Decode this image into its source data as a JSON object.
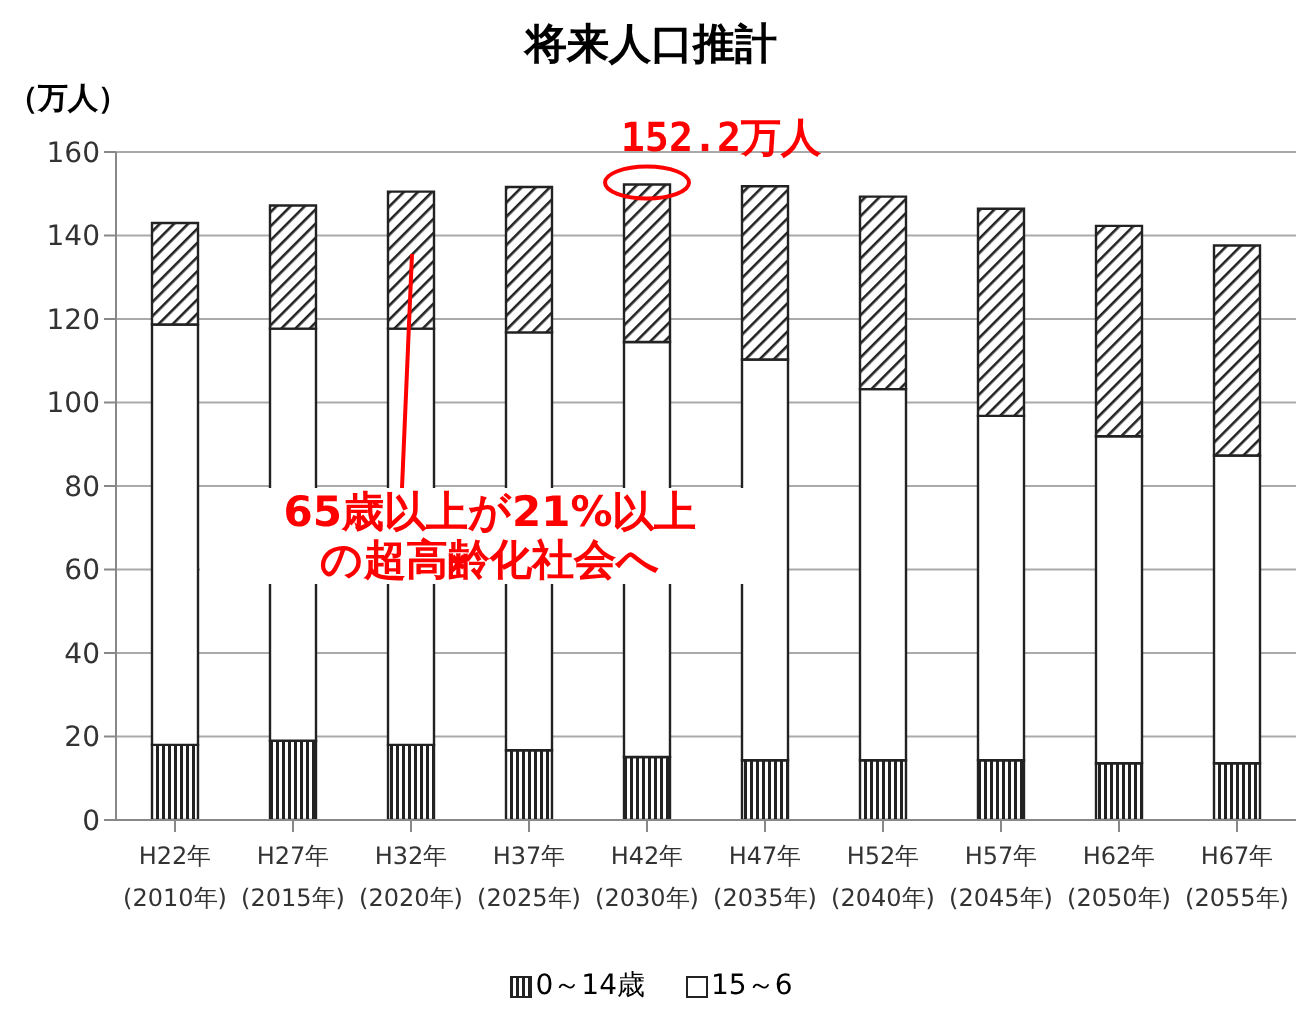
{
  "chart_data": {
    "type": "bar",
    "title": "将来人口推計",
    "ylabel": "（万人）",
    "categories": [
      "H22年\n(2010年)",
      "H27年\n(2015年)",
      "H32年\n(2020年)",
      "H37年\n(2025年)",
      "H42年\n(2030年)",
      "H47年\n(2035年)",
      "H52年\n(2040年)",
      "H57年\n(2045年)",
      "H62年\n(2050年)",
      "H67年\n(2055年)"
    ],
    "series": [
      {
        "name": "0～14歳",
        "color": "#222222",
        "values": [
          18,
          19,
          18,
          16.7,
          15.1,
          14.3,
          14.3,
          14.3,
          13.6,
          13.6
        ]
      },
      {
        "name": "15～6",
        "color": "#ffffff",
        "values": [
          100.7,
          98.7,
          99.7,
          100.1,
          99.4,
          96,
          88.9,
          82.5,
          78.3,
          73.7
        ]
      },
      {
        "color": "#222222",
        "values": [
          24.3,
          29.5,
          32.8,
          34.8,
          37.7,
          41.5,
          46.1,
          49.6,
          50.4,
          50.3
        ]
      }
    ],
    "stacked": true,
    "ylim": [
      0,
      160
    ],
    "yticks": [
      0,
      20,
      40,
      60,
      80,
      100,
      120,
      140,
      160
    ],
    "grid": "y",
    "legend": "bottom",
    "annotations": [
      {
        "text": "152.2万人",
        "x": "H42年\n(2030年)",
        "y": 152.2
      },
      "65歳以上が21%以上の超高齢化社会へ"
    ]
  }
}
